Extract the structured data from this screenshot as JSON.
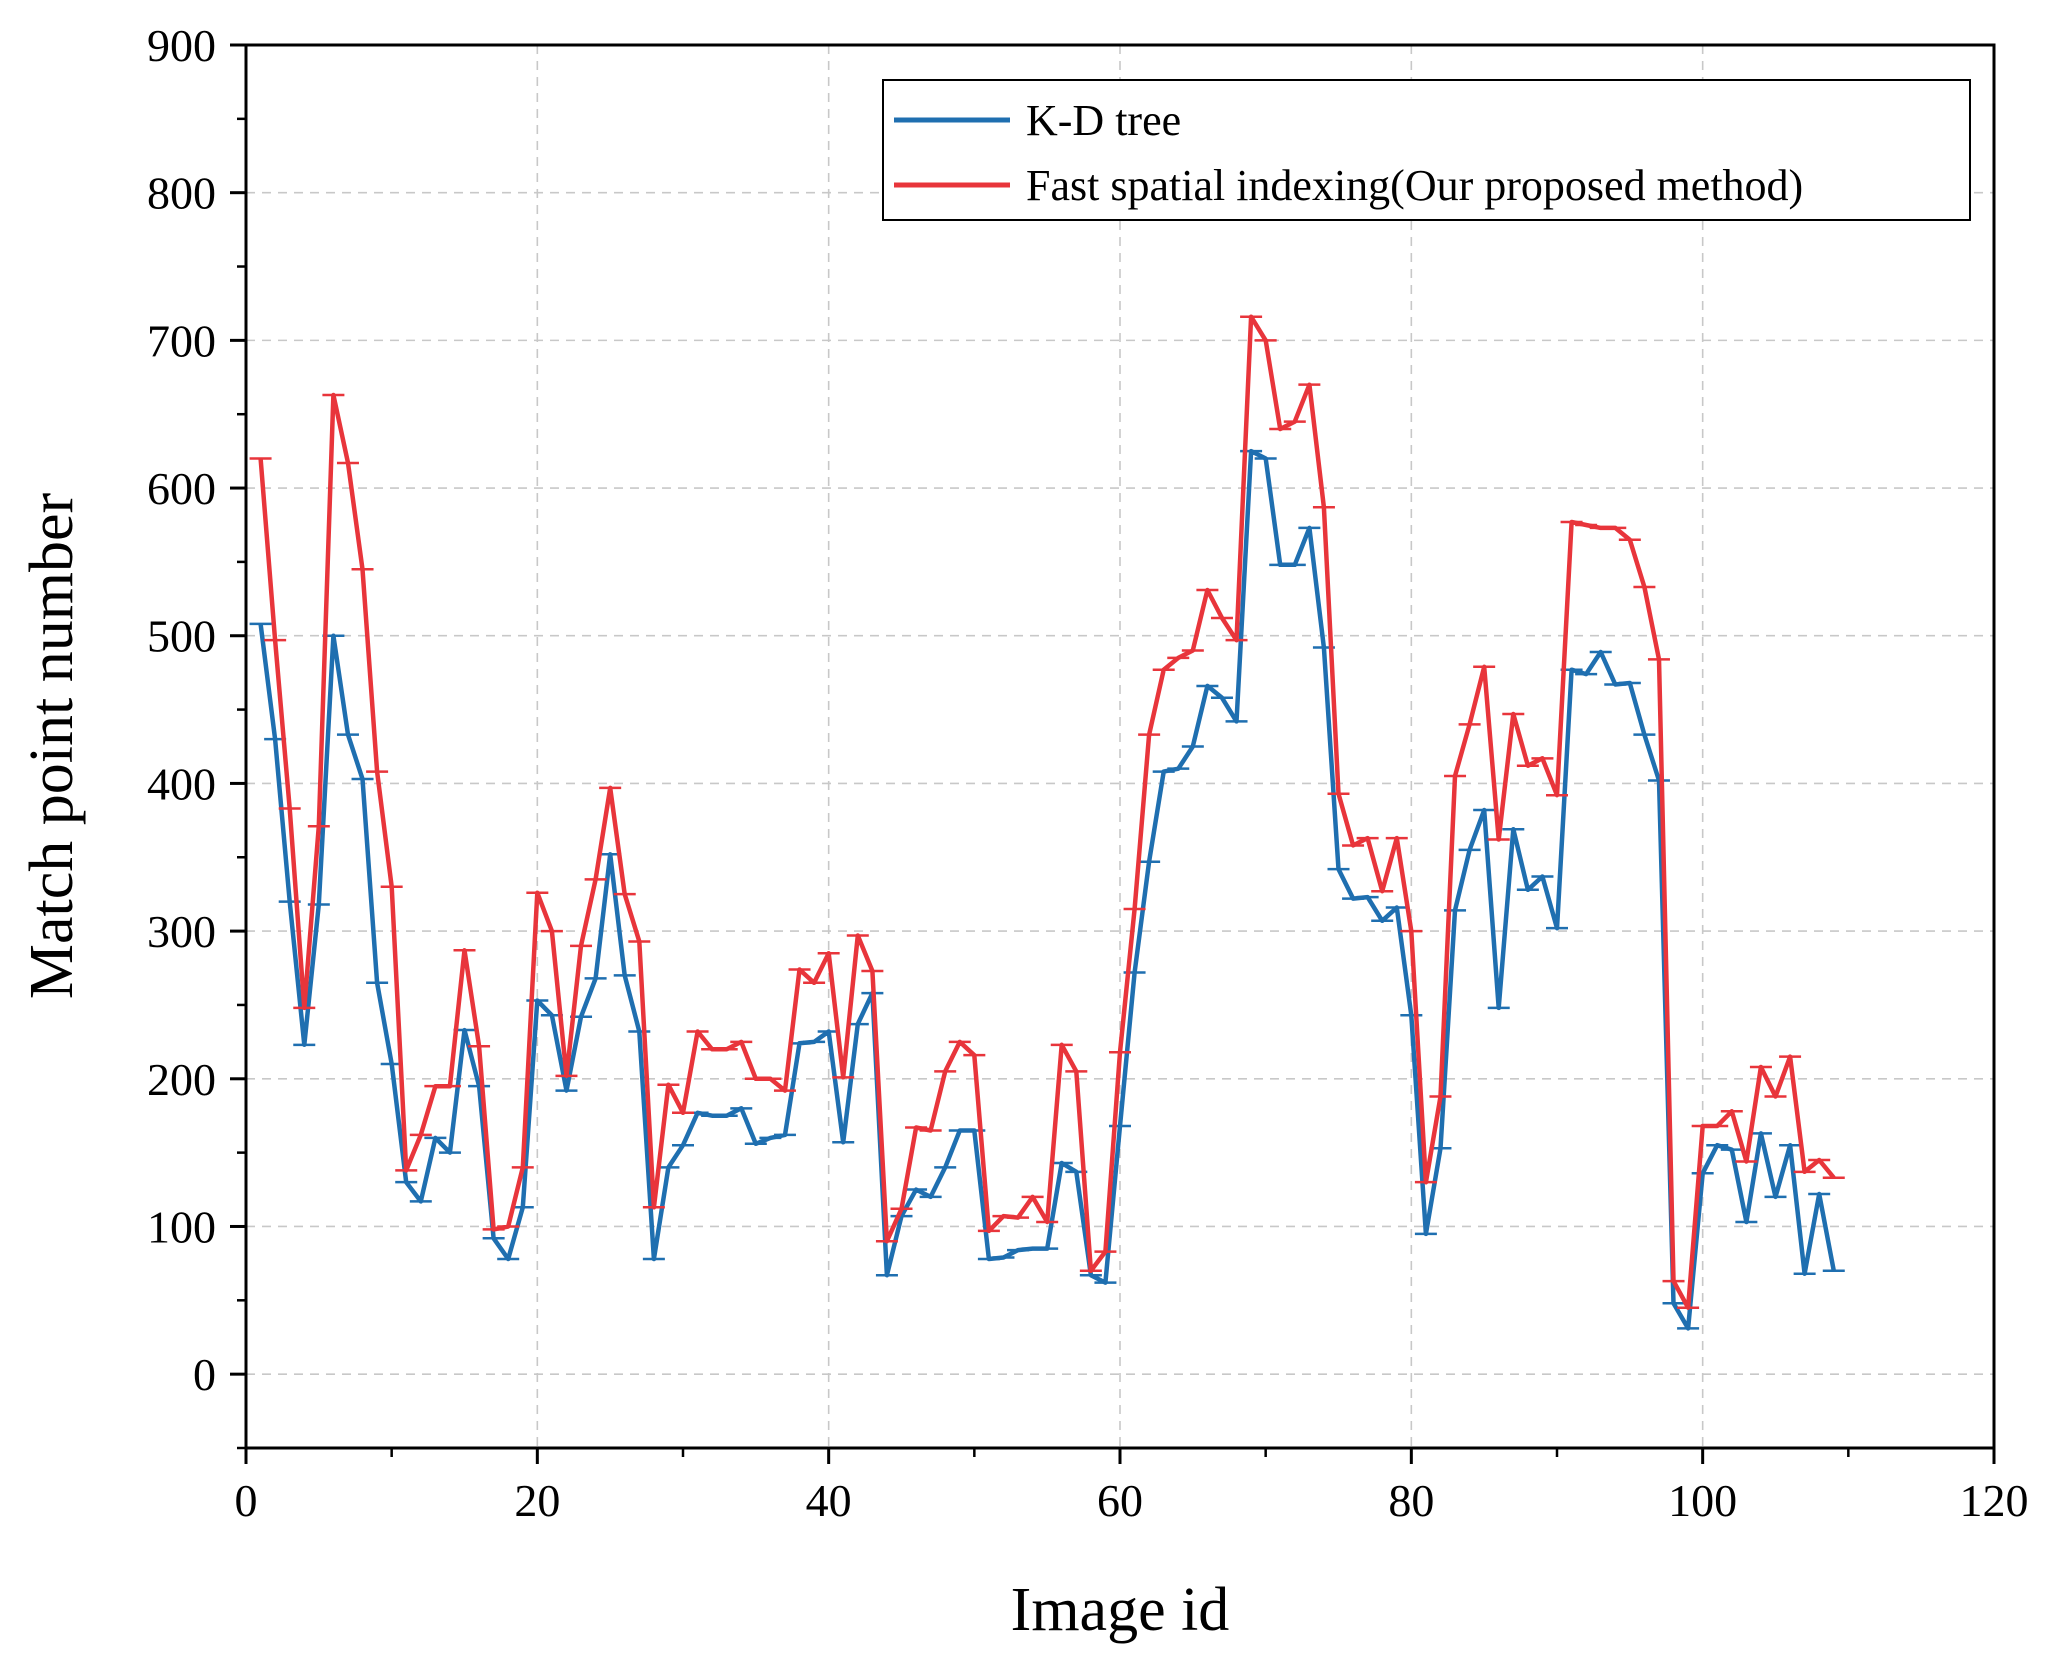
{
  "chart_data": {
    "type": "line",
    "xlabel": "Image id",
    "ylabel": "Match point number",
    "xlim": [
      0,
      120
    ],
    "ylim": [
      -50,
      900
    ],
    "x_ticks": [
      0,
      20,
      40,
      60,
      80,
      100,
      120
    ],
    "y_ticks": [
      0,
      100,
      200,
      300,
      400,
      500,
      600,
      700,
      800,
      900
    ],
    "grid": true,
    "legend_position": "top-right",
    "series": [
      {
        "name": "K-D tree",
        "color": "#1f6fb0",
        "x": [
          1,
          2,
          3,
          4,
          5,
          6,
          7,
          8,
          9,
          10,
          11,
          12,
          13,
          14,
          15,
          16,
          17,
          18,
          19,
          20,
          21,
          22,
          23,
          24,
          25,
          26,
          27,
          28,
          29,
          30,
          31,
          32,
          33,
          34,
          35,
          36,
          37,
          38,
          39,
          40,
          41,
          42,
          43,
          44,
          45,
          46,
          47,
          48,
          49,
          50,
          51,
          52,
          53,
          54,
          55,
          56,
          57,
          58,
          59,
          60,
          61,
          62,
          63,
          64,
          65,
          66,
          67,
          68,
          69,
          70,
          71,
          72,
          73,
          74,
          75,
          76,
          77,
          78,
          79,
          80,
          81,
          82,
          83,
          84,
          85,
          86,
          87,
          88,
          89,
          90,
          91,
          92,
          93,
          94,
          95,
          96,
          97,
          98,
          99,
          100,
          101,
          102,
          103,
          104,
          105,
          106,
          107,
          108,
          109
        ],
        "values": [
          508,
          430,
          320,
          223,
          318,
          500,
          433,
          403,
          265,
          210,
          130,
          117,
          160,
          150,
          233,
          195,
          92,
          78,
          113,
          253,
          243,
          192,
          242,
          268,
          352,
          270,
          232,
          78,
          140,
          155,
          177,
          175,
          175,
          180,
          156,
          160,
          162,
          224,
          225,
          232,
          157,
          237,
          258,
          67,
          107,
          125,
          120,
          140,
          165,
          165,
          78,
          79,
          84,
          85,
          85,
          143,
          137,
          67,
          62,
          168,
          272,
          347,
          408,
          410,
          425,
          466,
          458,
          442,
          625,
          620,
          548,
          548,
          573,
          492,
          342,
          322,
          323,
          307,
          316,
          243,
          95,
          153,
          314,
          355,
          382,
          248,
          369,
          328,
          337,
          302,
          477,
          474,
          489,
          467,
          468,
          433,
          402,
          48,
          31,
          136,
          155,
          152,
          103,
          163,
          120,
          155,
          68,
          122,
          70
        ]
      },
      {
        "name": "Fast spatial indexing(Our proposed method)",
        "color": "#e8353b",
        "x": [
          1,
          2,
          3,
          4,
          5,
          6,
          7,
          8,
          9,
          10,
          11,
          12,
          13,
          14,
          15,
          16,
          17,
          18,
          19,
          20,
          21,
          22,
          23,
          24,
          25,
          26,
          27,
          28,
          29,
          30,
          31,
          32,
          33,
          34,
          35,
          36,
          37,
          38,
          39,
          40,
          41,
          42,
          43,
          44,
          45,
          46,
          47,
          48,
          49,
          50,
          51,
          52,
          53,
          54,
          55,
          56,
          57,
          58,
          59,
          60,
          61,
          62,
          63,
          64,
          65,
          66,
          67,
          68,
          69,
          70,
          71,
          72,
          73,
          74,
          75,
          76,
          77,
          78,
          79,
          80,
          81,
          82,
          83,
          84,
          85,
          86,
          87,
          88,
          89,
          90,
          91,
          92,
          93,
          94,
          95,
          96,
          97,
          98,
          99,
          100,
          101,
          102,
          103,
          104,
          105,
          106,
          107,
          108,
          109
        ],
        "values": [
          620,
          497,
          383,
          248,
          371,
          663,
          617,
          545,
          408,
          330,
          138,
          162,
          195,
          195,
          287,
          222,
          98,
          100,
          140,
          326,
          300,
          202,
          290,
          335,
          397,
          325,
          293,
          113,
          196,
          177,
          232,
          220,
          220,
          225,
          200,
          200,
          192,
          274,
          265,
          285,
          201,
          297,
          273,
          90,
          112,
          167,
          165,
          205,
          225,
          216,
          97,
          107,
          106,
          120,
          103,
          223,
          205,
          70,
          83,
          218,
          315,
          433,
          477,
          485,
          490,
          531,
          512,
          497,
          716,
          700,
          640,
          645,
          670,
          587,
          393,
          358,
          363,
          327,
          363,
          300,
          130,
          188,
          405,
          440,
          479,
          362,
          447,
          412,
          417,
          392,
          577,
          575,
          573,
          573,
          565,
          533,
          484,
          63,
          45,
          168,
          168,
          178,
          144,
          208,
          188,
          215,
          137,
          145,
          133
        ]
      }
    ]
  }
}
